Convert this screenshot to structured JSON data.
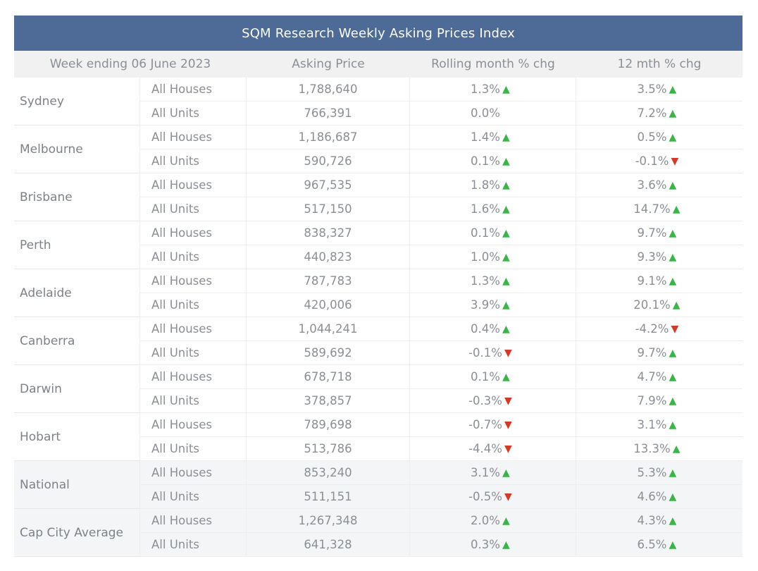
{
  "title": "SQM Research Weekly Asking Prices Index",
  "headers": {
    "week": "Week ending 06 June 2023",
    "price": "Asking Price",
    "rolling": "Rolling month % chg",
    "twelve": "12 mth % chg"
  },
  "colors": {
    "header_bg": "#4e6a97",
    "up": "#3bb54a",
    "down": "#d23a2a"
  },
  "icons": {
    "up": "triangle-up-icon",
    "down": "triangle-down-icon"
  },
  "groups": [
    {
      "city": "Sydney",
      "shaded": false,
      "rows": [
        {
          "type": "All Houses",
          "price": "1,788,640",
          "roll": "1.3%",
          "roll_dir": "up",
          "yr": "3.5%",
          "yr_dir": "up"
        },
        {
          "type": "All Units",
          "price": "766,391",
          "roll": "0.0%",
          "roll_dir": "none",
          "yr": "7.2%",
          "yr_dir": "up"
        }
      ]
    },
    {
      "city": "Melbourne",
      "shaded": false,
      "rows": [
        {
          "type": "All Houses",
          "price": "1,186,687",
          "roll": "1.4%",
          "roll_dir": "up",
          "yr": "0.5%",
          "yr_dir": "up"
        },
        {
          "type": "All Units",
          "price": "590,726",
          "roll": "0.1%",
          "roll_dir": "up",
          "yr": "-0.1%",
          "yr_dir": "down"
        }
      ]
    },
    {
      "city": "Brisbane",
      "shaded": false,
      "rows": [
        {
          "type": "All Houses",
          "price": "967,535",
          "roll": "1.8%",
          "roll_dir": "up",
          "yr": "3.6%",
          "yr_dir": "up"
        },
        {
          "type": "All Units",
          "price": "517,150",
          "roll": "1.6%",
          "roll_dir": "up",
          "yr": "14.7%",
          "yr_dir": "up"
        }
      ]
    },
    {
      "city": "Perth",
      "shaded": false,
      "rows": [
        {
          "type": "All Houses",
          "price": "838,327",
          "roll": "0.1%",
          "roll_dir": "up",
          "yr": "9.7%",
          "yr_dir": "up"
        },
        {
          "type": "All Units",
          "price": "440,823",
          "roll": "1.0%",
          "roll_dir": "up",
          "yr": "9.3%",
          "yr_dir": "up"
        }
      ]
    },
    {
      "city": "Adelaide",
      "shaded": false,
      "rows": [
        {
          "type": "All Houses",
          "price": "787,783",
          "roll": "1.3%",
          "roll_dir": "up",
          "yr": "9.1%",
          "yr_dir": "up"
        },
        {
          "type": "All Units",
          "price": "420,006",
          "roll": "3.9%",
          "roll_dir": "up",
          "yr": "20.1%",
          "yr_dir": "up"
        }
      ]
    },
    {
      "city": "Canberra",
      "shaded": false,
      "rows": [
        {
          "type": "All Houses",
          "price": "1,044,241",
          "roll": "0.4%",
          "roll_dir": "up",
          "yr": "-4.2%",
          "yr_dir": "down"
        },
        {
          "type": "All Units",
          "price": "589,692",
          "roll": "-0.1%",
          "roll_dir": "down",
          "yr": "9.7%",
          "yr_dir": "up"
        }
      ]
    },
    {
      "city": "Darwin",
      "shaded": false,
      "rows": [
        {
          "type": "All Houses",
          "price": "678,718",
          "roll": "0.1%",
          "roll_dir": "up",
          "yr": "4.7%",
          "yr_dir": "up"
        },
        {
          "type": "All Units",
          "price": "378,857",
          "roll": "-0.3%",
          "roll_dir": "down",
          "yr": "7.9%",
          "yr_dir": "up"
        }
      ]
    },
    {
      "city": "Hobart",
      "shaded": false,
      "rows": [
        {
          "type": "All Houses",
          "price": "789,698",
          "roll": "-0.7%",
          "roll_dir": "down",
          "yr": "3.1%",
          "yr_dir": "up"
        },
        {
          "type": "All Units",
          "price": "513,786",
          "roll": "-4.4%",
          "roll_dir": "down",
          "yr": "13.3%",
          "yr_dir": "up"
        }
      ]
    },
    {
      "city": "National",
      "shaded": true,
      "rows": [
        {
          "type": "All Houses",
          "price": "853,240",
          "roll": "3.1%",
          "roll_dir": "up",
          "yr": "5.3%",
          "yr_dir": "up"
        },
        {
          "type": "All Units",
          "price": "511,151",
          "roll": "-0.5%",
          "roll_dir": "down",
          "yr": "4.6%",
          "yr_dir": "up"
        }
      ]
    },
    {
      "city": "Cap City Average",
      "shaded": true,
      "rows": [
        {
          "type": "All Houses",
          "price": "1,267,348",
          "roll": "2.0%",
          "roll_dir": "up",
          "yr": "4.3%",
          "yr_dir": "up"
        },
        {
          "type": "All Units",
          "price": "641,328",
          "roll": "0.3%",
          "roll_dir": "up",
          "yr": "6.5%",
          "yr_dir": "up"
        }
      ]
    }
  ]
}
